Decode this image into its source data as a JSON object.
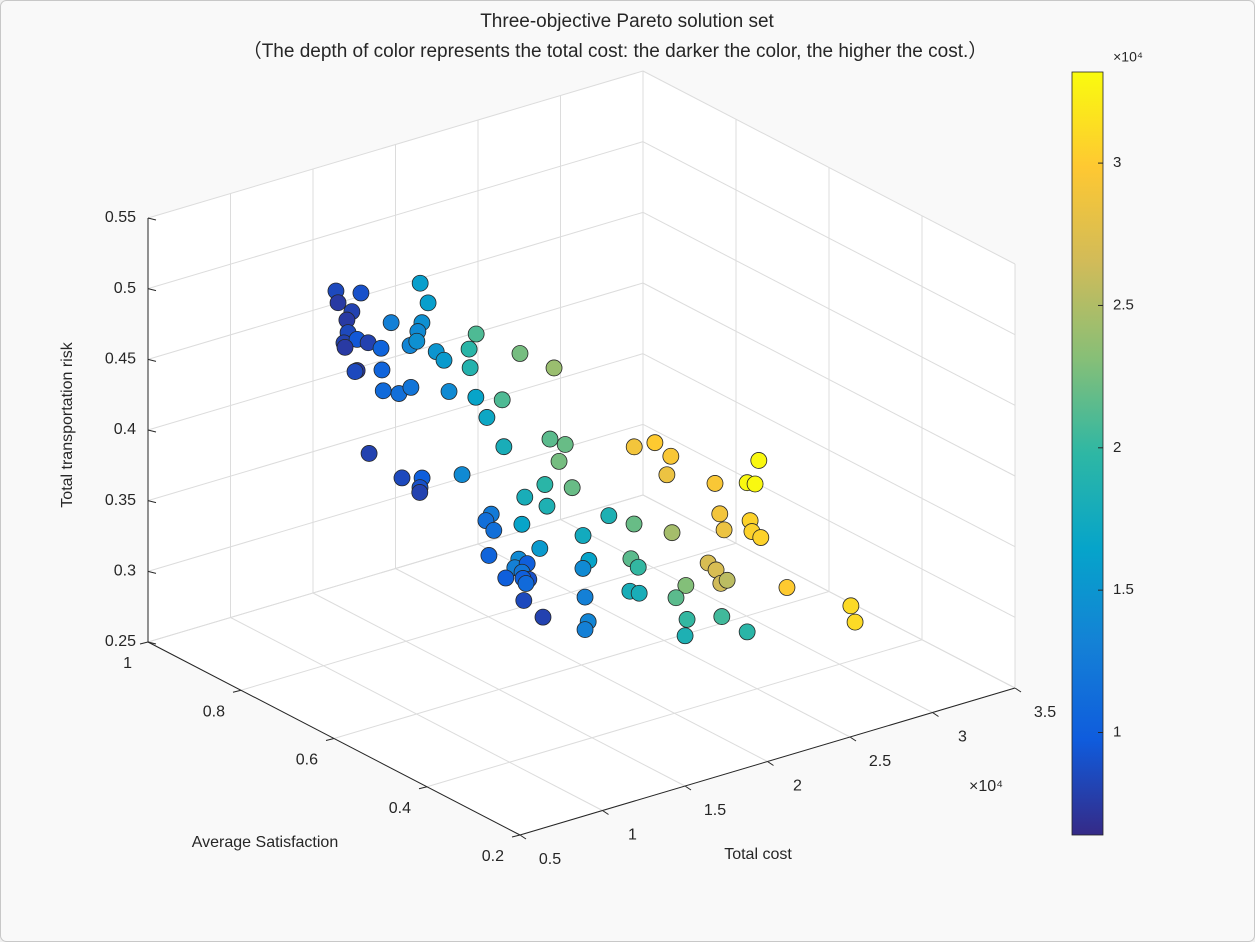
{
  "chart_data": {
    "type": "scatter3d",
    "title": "Three-objective Pareto solution set",
    "subtitle": "（The depth of color represents the total cost: the darker the color, the higher the cost.）",
    "x_label": "Total cost",
    "y_label": "Average Satisfaction",
    "z_label": "Total transportation risk",
    "x_exponent": "×10⁴",
    "colorbar_exponent": "×10⁴",
    "xlim": [
      5000,
      35000
    ],
    "xticks": [
      {
        "value": 5000,
        "label": "0.5"
      },
      {
        "value": 10000,
        "label": "1"
      },
      {
        "value": 15000,
        "label": "1.5"
      },
      {
        "value": 20000,
        "label": "2"
      },
      {
        "value": 25000,
        "label": "2.5"
      },
      {
        "value": 30000,
        "label": "3"
      },
      {
        "value": 35000,
        "label": "3.5"
      }
    ],
    "ylim": [
      0.2,
      1
    ],
    "yticks": [
      0.2,
      0.4,
      0.6,
      0.8,
      1
    ],
    "zlim": [
      0.25,
      0.55
    ],
    "zticks": [
      0.25,
      0.3,
      0.35,
      0.4,
      0.45,
      0.5,
      0.55
    ],
    "clim": [
      6400,
      33200
    ],
    "cticks": [
      {
        "value": 10000,
        "label": "1"
      },
      {
        "value": 15000,
        "label": "1.5"
      },
      {
        "value": 20000,
        "label": "2"
      },
      {
        "value": 25000,
        "label": "2.5"
      },
      {
        "value": 30000,
        "label": "3"
      }
    ],
    "colormap": [
      "#352a87",
      "#0f5cdd",
      "#1481d6",
      "#06a4ca",
      "#2eb7a4",
      "#87bf77",
      "#d1bb59",
      "#fec832",
      "#f9fb0e"
    ],
    "grid": true,
    "x": [
      8500,
      9000,
      7500,
      8000,
      7500,
      8500,
      8000,
      9500,
      7500,
      8000,
      7500,
      8500,
      10500,
      10500,
      11000,
      11500,
      12000,
      13000,
      16000,
      16000,
      14500,
      14000,
      13500,
      14500,
      15000,
      15500,
      14000,
      21000,
      19500,
      19000,
      16500,
      17000,
      21000,
      22500,
      24000,
      18000,
      21500,
      22000,
      22500,
      22000,
      19500,
      18000,
      18500,
      8000,
      8500,
      10000,
      9000,
      8000,
      14000,
      12500,
      11500,
      11500,
      16500,
      15500,
      14000,
      10500,
      13000,
      10000,
      12000,
      9000,
      10000,
      11000,
      10000,
      8500,
      8000,
      17500,
      16500,
      18500,
      14000,
      13000,
      13500,
      13000,
      22000,
      24500,
      21500,
      20000,
      18000,
      18000,
      23000,
      21500,
      20000,
      18500,
      20500,
      19500,
      29000,
      30000,
      29500,
      28500,
      29500,
      33000,
      33000,
      33000,
      29000,
      28500,
      30500,
      30500,
      30500,
      27000,
      27000,
      26500,
      25500,
      30000,
      31000,
      31000
    ],
    "y": [
      0.72,
      0.684,
      0.68,
      0.668,
      0.661,
      0.694,
      0.685,
      0.71,
      0.665,
      0.633,
      0.639,
      0.679,
      0.694,
      0.692,
      0.707,
      0.691,
      0.683,
      0.761,
      0.805,
      0.788,
      0.748,
      0.739,
      0.738,
      0.759,
      0.735,
      0.736,
      0.672,
      0.862,
      0.824,
      0.804,
      0.703,
      0.697,
      0.806,
      0.821,
      0.801,
      0.696,
      0.721,
      0.706,
      0.737,
      0.691,
      0.661,
      0.651,
      0.621,
      0.631,
      0.578,
      0.588,
      0.557,
      0.522,
      0.644,
      0.528,
      0.504,
      0.487,
      0.604,
      0.53,
      0.522,
      0.462,
      0.495,
      0.362,
      0.444,
      0.323,
      0.371,
      0.4,
      0.408,
      0.316,
      0.257,
      0.508,
      0.46,
      0.488,
      0.384,
      0.344,
      0.355,
      0.344,
      0.558,
      0.565,
      0.547,
      0.478,
      0.425,
      0.405,
      0.482,
      0.45,
      0.373,
      0.324,
      0.316,
      0.226,
      0.806,
      0.797,
      0.745,
      0.718,
      0.65,
      0.705,
      0.68,
      0.688,
      0.622,
      0.595,
      0.61,
      0.606,
      0.587,
      0.576,
      0.559,
      0.531,
      0.482,
      0.513,
      0.411,
      0.402
    ],
    "z": [
      0.534,
      0.537,
      0.536,
      0.53,
      0.527,
      0.509,
      0.505,
      0.498,
      0.507,
      0.514,
      0.495,
      0.484,
      0.491,
      0.476,
      0.457,
      0.456,
      0.46,
      0.489,
      0.499,
      0.488,
      0.486,
      0.483,
      0.475,
      0.471,
      0.466,
      0.458,
      0.452,
      0.436,
      0.437,
      0.429,
      0.434,
      0.419,
      0.399,
      0.424,
      0.412,
      0.395,
      0.384,
      0.381,
      0.362,
      0.353,
      0.369,
      0.367,
      0.364,
      0.436,
      0.426,
      0.419,
      0.421,
      0.427,
      0.398,
      0.395,
      0.398,
      0.394,
      0.361,
      0.36,
      0.359,
      0.384,
      0.361,
      0.397,
      0.37,
      0.396,
      0.385,
      0.373,
      0.379,
      0.384,
      0.384,
      0.366,
      0.36,
      0.38,
      0.376,
      0.366,
      0.345,
      0.343,
      0.35,
      0.334,
      0.329,
      0.34,
      0.339,
      0.341,
      0.316,
      0.318,
      0.321,
      0.323,
      0.331,
      0.339,
      0.338,
      0.339,
      0.34,
      0.335,
      0.337,
      0.316,
      0.336,
      0.318,
      0.322,
      0.317,
      0.314,
      0.307,
      0.306,
      0.302,
      0.3,
      0.297,
      0.311,
      0.285,
      0.286,
      0.276
    ]
  }
}
